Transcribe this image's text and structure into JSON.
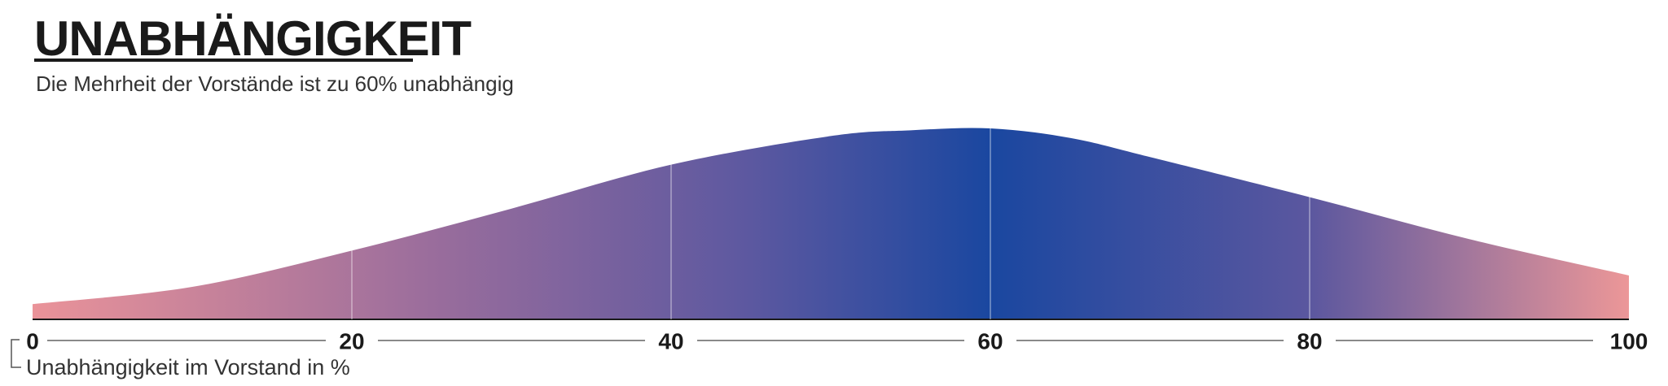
{
  "chart_data": {
    "type": "area",
    "title": "UNABHÄNGIGKEIT",
    "subtitle": "Die Mehrheit der Vorstände ist zu 60% unabhängig",
    "x_label": "Unabhängigkeit im Vorstand in %",
    "x": [
      0,
      10,
      20,
      30,
      40,
      50,
      55,
      60,
      65,
      70,
      80,
      90,
      100
    ],
    "values": [
      8,
      17,
      36,
      58,
      81,
      96,
      99,
      100,
      95,
      85,
      64,
      42,
      23
    ],
    "xlim": [
      0,
      100
    ],
    "xticks": [
      0,
      20,
      40,
      60,
      80,
      100
    ],
    "ylim": [
      0,
      100
    ],
    "grid": true,
    "gradient": [
      {
        "offset": 0,
        "color": "#ea9399"
      },
      {
        "offset": 25,
        "color": "#9a6d9c"
      },
      {
        "offset": 45,
        "color": "#5c58a0"
      },
      {
        "offset": 60,
        "color": "#1a47a0"
      },
      {
        "offset": 80,
        "color": "#5b579f"
      },
      {
        "offset": 100,
        "color": "#ec9798"
      }
    ]
  }
}
